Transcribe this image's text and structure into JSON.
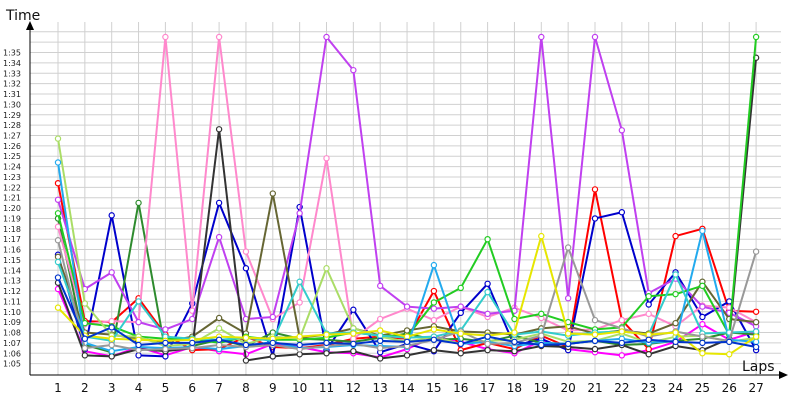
{
  "chart_data": {
    "type": "line",
    "title": "",
    "ylabel": "Time",
    "xlabel": "Laps",
    "y_unit": "m:ss",
    "ylim": [
      64,
      96
    ],
    "yticks": [
      "1:05",
      "1:06",
      "1:07",
      "1:08",
      "1:09",
      "1:10",
      "1:11",
      "1:12",
      "1:13",
      "1:14",
      "1:15",
      "1:16",
      "1:17",
      "1:18",
      "1:19",
      "1:20",
      "1:21",
      "1:22",
      "1:23",
      "1:24",
      "1:25",
      "1:26",
      "1:27",
      "1:28",
      "1:29",
      "1:30",
      "1:31",
      "1:32",
      "1:33",
      "1:34",
      "1:35"
    ],
    "categories": [
      "1",
      "2",
      "3",
      "4",
      "5",
      "6",
      "7",
      "8",
      "9",
      "10",
      "11",
      "12",
      "13",
      "14",
      "15",
      "16",
      "17",
      "18",
      "19",
      "20",
      "21",
      "22",
      "23",
      "24",
      "25",
      "26",
      "27"
    ],
    "grid": true,
    "legend": "none",
    "series": [
      {
        "color": "#ff00ff",
        "values": [
          72.2,
          66.2,
          65.7,
          66.6,
          65.8,
          66.6,
          66.2,
          65.9,
          66.9,
          66.6,
          66.1,
          66.0,
          65.6,
          66.4,
          67.6,
          67.1,
          66.4,
          66.0,
          67.2,
          66.4,
          66.1,
          65.8,
          66.3,
          67.1,
          68.8,
          67.3,
          68.1
        ]
      },
      {
        "color": "#ff0000",
        "values": [
          82.4,
          69.1,
          69.0,
          71.3,
          67.8,
          66.3,
          66.4,
          67.6,
          66.6,
          66.5,
          66.8,
          67.4,
          67.6,
          67.4,
          72.0,
          66.3,
          67.0,
          66.4,
          67.7,
          66.6,
          81.8,
          69.2,
          66.4,
          77.3,
          78.0,
          70.1,
          70.0
        ]
      },
      {
        "color": "#0000cc",
        "values": [
          75.5,
          66.4,
          79.3,
          65.8,
          65.7,
          70.8,
          80.5,
          74.2,
          65.7,
          80.1,
          66.3,
          70.2,
          66.1,
          66.9,
          66.2,
          69.9,
          72.7,
          66.7,
          67.4,
          66.3,
          79.0,
          79.6,
          70.7,
          73.8,
          69.5,
          71.0,
          66.3
        ]
      },
      {
        "color": "#2e8b2e",
        "values": [
          79.0,
          66.8,
          66.1,
          80.5,
          66.2,
          66.7,
          67.3,
          66.7,
          68.0,
          67.4,
          67.3,
          67.1,
          67.5,
          67.9,
          67.3,
          67.4,
          67.1,
          67.7,
          67.0,
          66.9,
          67.2,
          66.8,
          66.9,
          67.2,
          67.4,
          68.0,
          67.8
        ]
      },
      {
        "color": "#ff88cc",
        "values": [
          78.2,
          68.8,
          69.1,
          69.0,
          96.5,
          70.1,
          96.5,
          75.8,
          69.3,
          70.9,
          84.8,
          67.4,
          69.3,
          70.3,
          69.2,
          70.5,
          69.5,
          70.4,
          69.4,
          68.2,
          68.3,
          69.2,
          69.8,
          68.6,
          70.6,
          70.4,
          69.0
        ]
      },
      {
        "color": "#c040f0",
        "values": [
          80.8,
          72.2,
          73.8,
          69.0,
          68.3,
          69.3,
          77.2,
          69.3,
          69.5,
          79.5,
          96.5,
          93.3,
          72.5,
          70.5,
          70.3,
          70.5,
          69.8,
          70.1,
          96.5,
          71.3,
          96.5,
          87.5,
          71.8,
          73.2,
          70.5,
          69.9,
          68.6
        ]
      },
      {
        "color": "#666633",
        "values": [
          75.3,
          68.0,
          67.8,
          67.4,
          67.1,
          67.6,
          69.4,
          67.9,
          81.4,
          67.5,
          67.8,
          68.4,
          67.7,
          68.2,
          68.6,
          68.1,
          68.0,
          67.8,
          68.4,
          68.6,
          67.9,
          68.2,
          67.9,
          68.9,
          72.9,
          69.3,
          69.0
        ]
      },
      {
        "color": "#333333",
        "values": [
          72.8,
          65.8,
          65.7,
          66.4,
          66.2,
          66.5,
          87.6,
          65.3,
          65.7,
          65.9,
          66.0,
          66.2,
          65.5,
          65.8,
          66.3,
          66.0,
          66.3,
          66.2,
          66.7,
          66.6,
          66.4,
          66.8,
          65.9,
          66.7,
          66.3,
          67.4,
          94.5
        ]
      },
      {
        "color": "#22cc22",
        "values": [
          79.5,
          68.9,
          68.6,
          67.6,
          67.4,
          67.4,
          67.0,
          67.6,
          67.3,
          67.3,
          67.5,
          68.0,
          67.7,
          67.6,
          70.9,
          72.3,
          77.0,
          69.3,
          69.8,
          69.0,
          68.3,
          68.5,
          71.5,
          71.7,
          72.5,
          67.8,
          96.5
        ]
      },
      {
        "color": "#aadd66",
        "values": [
          86.7,
          70.8,
          67.7,
          67.6,
          66.7,
          66.9,
          68.4,
          66.9,
          67.6,
          67.4,
          74.2,
          68.4,
          67.6,
          67.1,
          67.6,
          66.9,
          67.2,
          67.3,
          67.9,
          67.1,
          67.2,
          67.9,
          67.0,
          67.6,
          67.7,
          67.1,
          67.5
        ]
      },
      {
        "color": "#22aaee",
        "values": [
          84.4,
          67.0,
          66.2,
          66.6,
          66.5,
          66.6,
          66.4,
          66.7,
          67.1,
          66.5,
          66.6,
          66.8,
          66.7,
          66.6,
          74.5,
          66.9,
          67.1,
          66.7,
          67.0,
          66.9,
          67.2,
          67.4,
          67.0,
          67.2,
          77.8,
          67.3,
          67.1
        ]
      },
      {
        "color": "#33cccc",
        "values": [
          74.8,
          67.6,
          67.2,
          71.0,
          67.6,
          67.4,
          67.3,
          67.5,
          67.2,
          72.9,
          67.9,
          68.0,
          67.7,
          67.5,
          67.6,
          68.2,
          71.9,
          67.8,
          68.1,
          67.7,
          68.0,
          68.1,
          67.8,
          73.6,
          67.9,
          68.0,
          68.1
        ]
      },
      {
        "color": "#999999",
        "values": [
          76.9,
          66.5,
          66.8,
          66.3,
          66.4,
          66.5,
          66.8,
          66.6,
          66.8,
          66.4,
          66.7,
          66.9,
          66.5,
          66.7,
          67.3,
          68.1,
          66.9,
          67.0,
          67.7,
          76.2,
          69.2,
          68.4,
          67.6,
          68.1,
          67.6,
          67.2,
          75.8
        ]
      },
      {
        "color": "#e6e600",
        "values": [
          70.4,
          67.7,
          67.4,
          67.3,
          67.2,
          67.3,
          67.6,
          67.5,
          67.4,
          67.6,
          67.8,
          67.9,
          68.2,
          67.6,
          68.3,
          67.9,
          67.7,
          68.0,
          77.3,
          67.9,
          67.8,
          68.1,
          67.8,
          68.0,
          66.0,
          65.9,
          67.6
        ]
      },
      {
        "color": "#0033cc",
        "values": [
          73.3,
          67.4,
          68.5,
          66.8,
          67.0,
          67.0,
          67.3,
          66.8,
          67.0,
          66.8,
          67.0,
          66.9,
          67.2,
          67.1,
          67.3,
          66.9,
          67.6,
          67.1,
          66.8,
          66.9,
          67.2,
          67.0,
          67.3,
          67.1,
          67.0,
          67.1,
          66.6
        ]
      }
    ]
  }
}
